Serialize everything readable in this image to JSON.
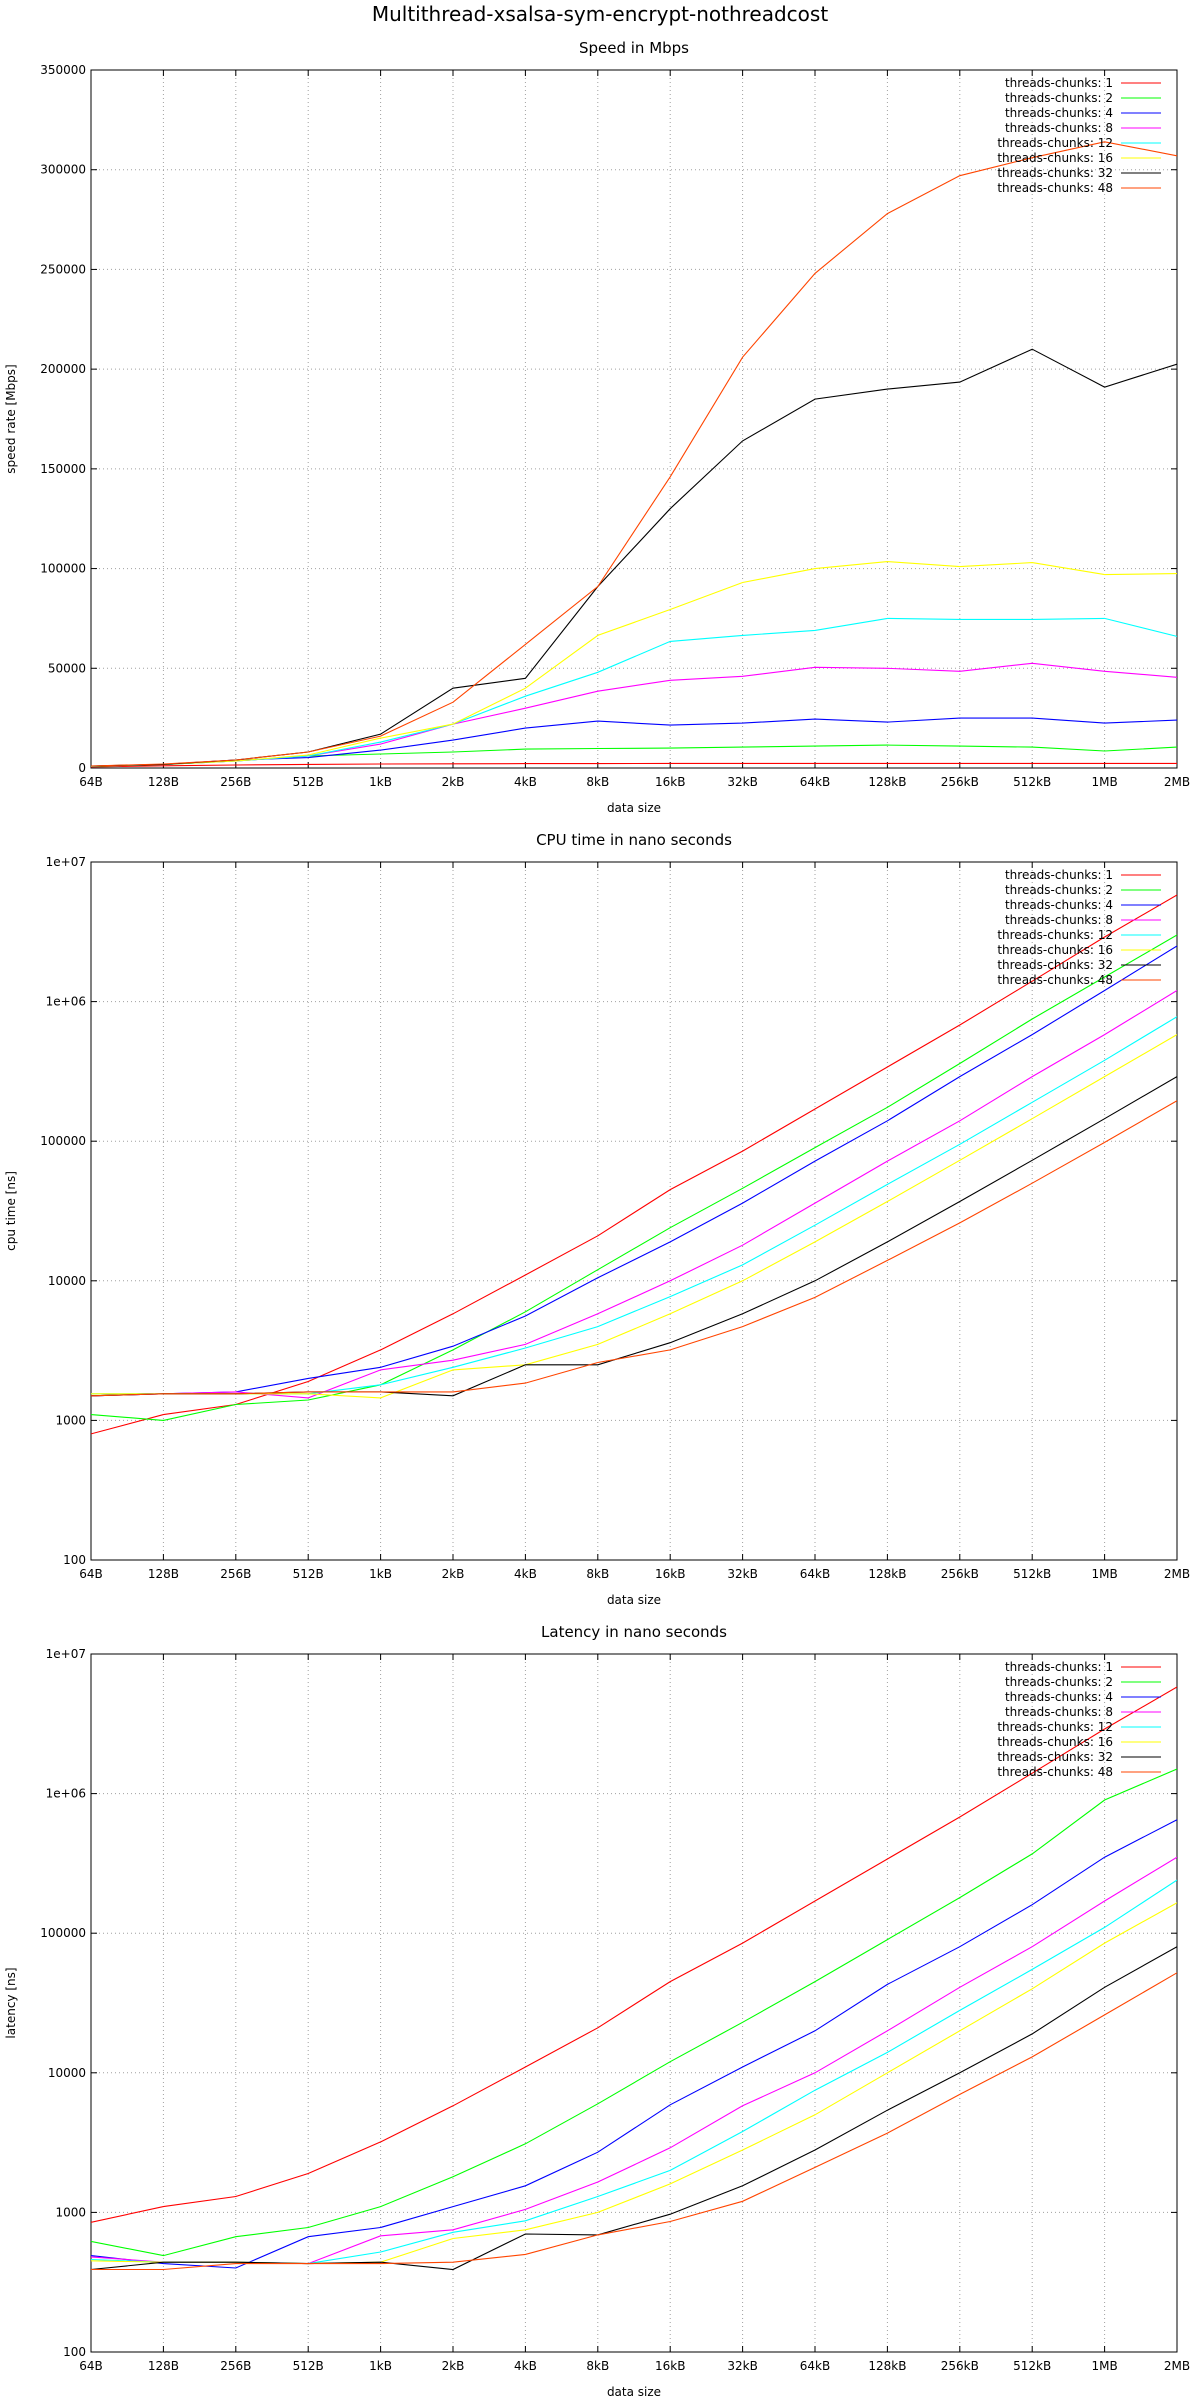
{
  "title": "Multithread-xsalsa-sym-encrypt-nothreadcost",
  "chart_data": [
    {
      "type": "line",
      "title": "Speed in Mbps",
      "xlabel": "data size",
      "ylabel": "speed rate [Mbps]",
      "yscale": "linear",
      "ylim": [
        0,
        350000
      ],
      "yticks": [
        0,
        50000,
        100000,
        150000,
        200000,
        250000,
        300000,
        350000
      ],
      "ytick_labels": [
        "0",
        "50000",
        "100000",
        "150000",
        "200000",
        "250000",
        "300000",
        "350000"
      ],
      "categories": [
        "64B",
        "128B",
        "256B",
        "512B",
        "1kB",
        "2kB",
        "4kB",
        "8kB",
        "16kB",
        "32kB",
        "64kB",
        "128kB",
        "256kB",
        "512kB",
        "1MB",
        "2MB"
      ],
      "grid": true,
      "legend": "top-right",
      "series": [
        {
          "name": "threads-chunks: 1",
          "color": "#ff0000",
          "values": [
            600,
            1100,
            1500,
            1800,
            2000,
            2100,
            2200,
            2200,
            2300,
            2300,
            2300,
            2300,
            2300,
            2300,
            2300,
            2300
          ]
        },
        {
          "name": "threads-chunks: 2",
          "color": "#00ff00",
          "values": [
            800,
            1800,
            3500,
            6000,
            7000,
            8000,
            9500,
            9800,
            10000,
            10500,
            11000,
            11500,
            11000,
            10500,
            8500,
            10500
          ]
        },
        {
          "name": "threads-chunks: 4",
          "color": "#0000ff",
          "values": [
            900,
            1800,
            4000,
            5200,
            9000,
            14000,
            20000,
            23500,
            21500,
            22500,
            24500,
            23000,
            25000,
            25000,
            22500,
            24000
          ]
        },
        {
          "name": "threads-chunks: 8",
          "color": "#ff00ff",
          "values": [
            900,
            1800,
            3500,
            6000,
            12000,
            22000,
            30000,
            38500,
            44000,
            46000,
            50500,
            50000,
            48500,
            52500,
            48500,
            45500
          ]
        },
        {
          "name": "threads-chunks: 12",
          "color": "#00ffff",
          "values": [
            900,
            1800,
            3500,
            6000,
            13000,
            22000,
            36000,
            48000,
            63500,
            66500,
            69000,
            75000,
            74500,
            74500,
            75000,
            66000
          ]
        },
        {
          "name": "threads-chunks: 16",
          "color": "#ffff00",
          "values": [
            900,
            1800,
            3500,
            6500,
            15000,
            22000,
            40000,
            66500,
            79500,
            93000,
            100000,
            103500,
            101000,
            103000,
            97000,
            97500
          ]
        },
        {
          "name": "threads-chunks: 32",
          "color": "#000000",
          "values": [
            1000,
            1800,
            4000,
            8000,
            17000,
            40000,
            45000,
            91000,
            130000,
            164000,
            185000,
            190000,
            193500,
            210000,
            191000,
            202500
          ]
        },
        {
          "name": "threads-chunks: 48",
          "color": "#ff4500",
          "values": [
            1000,
            2000,
            4000,
            8000,
            16000,
            33000,
            62000,
            91000,
            146000,
            206000,
            248000,
            278000,
            297000,
            306000,
            314000,
            307000
          ]
        }
      ]
    },
    {
      "type": "line",
      "title": "CPU time in nano seconds",
      "xlabel": "data size",
      "ylabel": "cpu time [ns]",
      "yscale": "log",
      "ylim": [
        100,
        10000000
      ],
      "yticks": [
        100,
        1000,
        10000,
        100000,
        1000000,
        10000000
      ],
      "ytick_labels": [
        "100",
        "1000",
        "10000",
        "100000",
        "1e+06",
        "1e+07"
      ],
      "categories": [
        "64B",
        "128B",
        "256B",
        "512B",
        "1kB",
        "2kB",
        "4kB",
        "8kB",
        "16kB",
        "32kB",
        "64kB",
        "128kB",
        "256kB",
        "512kB",
        "1MB",
        "2MB"
      ],
      "grid": true,
      "legend": "top-right",
      "series": [
        {
          "name": "threads-chunks: 1",
          "color": "#ff0000",
          "values": [
            800,
            1100,
            1300,
            1900,
            3200,
            5800,
            11000,
            21000,
            45000,
            85000,
            170000,
            340000,
            680000,
            1400000,
            2900000,
            5800000
          ]
        },
        {
          "name": "threads-chunks: 2",
          "color": "#00ff00",
          "values": [
            1100,
            1000,
            1300,
            1400,
            1800,
            3200,
            6000,
            12000,
            24000,
            46000,
            90000,
            175000,
            360000,
            750000,
            1500000,
            3000000
          ]
        },
        {
          "name": "threads-chunks: 4",
          "color": "#0000ff",
          "values": [
            1500,
            1550,
            1600,
            2000,
            2400,
            3400,
            5600,
            10500,
            19000,
            36000,
            72000,
            140000,
            290000,
            580000,
            1200000,
            2500000
          ]
        },
        {
          "name": "threads-chunks: 8",
          "color": "#ff00ff",
          "values": [
            1500,
            1550,
            1600,
            1450,
            2300,
            2700,
            3500,
            5800,
            10000,
            18000,
            36000,
            72000,
            140000,
            290000,
            580000,
            1200000
          ]
        },
        {
          "name": "threads-chunks: 12",
          "color": "#00ffff",
          "values": [
            1550,
            1550,
            1550,
            1550,
            1800,
            2400,
            3300,
            4700,
            7700,
            13000,
            25000,
            49000,
            95000,
            190000,
            380000,
            780000
          ]
        },
        {
          "name": "threads-chunks: 16",
          "color": "#ffff00",
          "values": [
            1550,
            1550,
            1550,
            1550,
            1450,
            2300,
            2500,
            3500,
            5800,
            10000,
            19000,
            37000,
            73000,
            145000,
            290000,
            580000
          ]
        },
        {
          "name": "threads-chunks: 32",
          "color": "#000000",
          "values": [
            1500,
            1550,
            1550,
            1600,
            1600,
            1500,
            2500,
            2500,
            3600,
            5800,
            10000,
            19000,
            37000,
            73000,
            145000,
            290000
          ]
        },
        {
          "name": "threads-chunks: 48",
          "color": "#ff4500",
          "values": [
            1500,
            1550,
            1550,
            1600,
            1600,
            1600,
            1850,
            2600,
            3200,
            4700,
            7600,
            14000,
            26000,
            50000,
            98000,
            195000
          ]
        }
      ]
    },
    {
      "type": "line",
      "title": "Latency in nano seconds",
      "xlabel": "data size",
      "ylabel": "latency [ns]",
      "yscale": "log",
      "ylim": [
        100,
        10000000
      ],
      "yticks": [
        100,
        1000,
        10000,
        100000,
        1000000,
        10000000
      ],
      "ytick_labels": [
        "100",
        "1000",
        "10000",
        "100000",
        "1e+06",
        "1e+07"
      ],
      "categories": [
        "64B",
        "128B",
        "256B",
        "512B",
        "1kB",
        "2kB",
        "4kB",
        "8kB",
        "16kB",
        "32kB",
        "64kB",
        "128kB",
        "256kB",
        "512kB",
        "1MB",
        "2MB"
      ],
      "grid": true,
      "legend": "top-right",
      "series": [
        {
          "name": "threads-chunks: 1",
          "color": "#ff0000",
          "values": [
            850,
            1100,
            1300,
            1900,
            3200,
            5800,
            11000,
            21000,
            45000,
            85000,
            170000,
            340000,
            680000,
            1400000,
            2900000,
            5800000
          ]
        },
        {
          "name": "threads-chunks: 2",
          "color": "#00ff00",
          "values": [
            620,
            490,
            670,
            780,
            1100,
            1800,
            3100,
            6000,
            12000,
            23000,
            45000,
            90000,
            180000,
            370000,
            900000,
            1500000
          ]
        },
        {
          "name": "threads-chunks: 4",
          "color": "#0000ff",
          "values": [
            490,
            430,
            400,
            670,
            780,
            1100,
            1550,
            2700,
            5900,
            11000,
            20000,
            43000,
            80000,
            160000,
            350000,
            650000
          ]
        },
        {
          "name": "threads-chunks: 8",
          "color": "#ff00ff",
          "values": [
            480,
            440,
            440,
            430,
            680,
            750,
            1050,
            1650,
            2900,
            5800,
            10000,
            20000,
            41000,
            80000,
            170000,
            350000
          ]
        },
        {
          "name": "threads-chunks: 12",
          "color": "#00ffff",
          "values": [
            460,
            440,
            440,
            430,
            520,
            720,
            870,
            1300,
            2000,
            3800,
            7500,
            14000,
            28000,
            55000,
            110000,
            240000
          ]
        },
        {
          "name": "threads-chunks: 16",
          "color": "#ffff00",
          "values": [
            450,
            440,
            440,
            430,
            440,
            650,
            750,
            1000,
            1600,
            2800,
            5000,
            10000,
            20000,
            40000,
            85000,
            165000
          ]
        },
        {
          "name": "threads-chunks: 32",
          "color": "#000000",
          "values": [
            390,
            440,
            440,
            430,
            440,
            390,
            700,
            690,
            970,
            1550,
            2800,
            5400,
            10000,
            19000,
            41000,
            80000
          ]
        },
        {
          "name": "threads-chunks: 48",
          "color": "#ff4500",
          "values": [
            390,
            390,
            430,
            430,
            430,
            440,
            500,
            690,
            860,
            1200,
            2100,
            3700,
            7000,
            13000,
            26000,
            52000
          ]
        }
      ]
    }
  ]
}
